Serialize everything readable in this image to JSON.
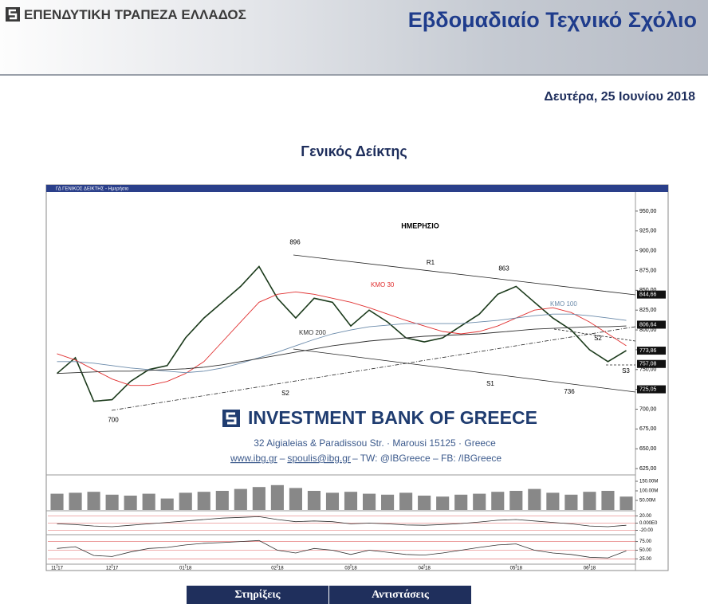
{
  "header": {
    "bank_name": "ΕΠΕΝΔΥΤΙΚΗ ΤΡΑΠΕΖΑ ΕΛΛΑΔΟΣ",
    "title": "Εβδομαδιαίο Τεχνικό Σχόλιο",
    "date": "Δευτέρα, 25 Ιουνίου 2018"
  },
  "section_title": "Γενικός Δείκτης",
  "watermark": {
    "name": "INVESTMENT BANK OF GREECE",
    "address": "32 Aigialeias & Paradissou Str. · Marousi 15125 · Greece",
    "website": "www.ibg.gr",
    "separator": "–",
    "email": "spoulis@ibg.gr",
    "social": "– TW: @IBGreece – FB: /IBGreece"
  },
  "table": {
    "headers": [
      "Στηρίξεις",
      "Αντιστάσεις"
    ]
  },
  "chart_data": {
    "type": "line",
    "window_title": "ΓΔ ΓΕΝΙΚΟΣ ΔΕΙΚΤΗΣ - Ημερήσιο",
    "title": "ΗΜΕΡΗΣΙΟ",
    "categories": [
      "11-17",
      null,
      null,
      "12-17",
      null,
      null,
      null,
      "01-18",
      null,
      null,
      null,
      null,
      "02-18",
      null,
      null,
      null,
      "03-18",
      null,
      null,
      null,
      "04-18",
      null,
      null,
      null,
      null,
      "05-18",
      null,
      null,
      null,
      "06-18",
      null,
      null
    ],
    "series": [
      {
        "color": "#1b3a1b",
        "values": [
          745,
          765,
          710,
          712,
          735,
          750,
          755,
          790,
          815,
          835,
          855,
          880,
          840,
          815,
          840,
          835,
          805,
          825,
          810,
          790,
          785,
          790,
          805,
          820,
          845,
          855,
          835,
          815,
          800,
          775,
          760,
          774
        ]
      },
      {
        "name": "ΚΜΟ 30",
        "color": "#e03030",
        "values": [
          770,
          762,
          750,
          738,
          730,
          730,
          735,
          745,
          760,
          785,
          810,
          835,
          845,
          848,
          845,
          840,
          835,
          828,
          820,
          812,
          805,
          798,
          795,
          798,
          805,
          815,
          825,
          828,
          822,
          810,
          795,
          780
        ]
      },
      {
        "name": "ΚΜΟ 100",
        "color": "#6a8aaa",
        "values": [
          760,
          760,
          758,
          755,
          752,
          750,
          748,
          746,
          748,
          752,
          758,
          765,
          772,
          780,
          788,
          795,
          800,
          804,
          806,
          808,
          808,
          808,
          808,
          810,
          812,
          815,
          818,
          820,
          820,
          818,
          815,
          812
        ]
      },
      {
        "name": "ΚΜΟ 200",
        "color": "#303030",
        "values": [
          745,
          746,
          747,
          748,
          748,
          749,
          750,
          751,
          753,
          756,
          760,
          764,
          768,
          772,
          776,
          780,
          783,
          786,
          788,
          790,
          792,
          793,
          794,
          795,
          797,
          799,
          801,
          802,
          803,
          804,
          804,
          805
        ]
      }
    ],
    "ylim": [
      615,
      965
    ],
    "yticks": [
      {
        "value": 625,
        "label": "625,00"
      },
      {
        "value": 650,
        "label": "650,00"
      },
      {
        "value": 675,
        "label": "675,00"
      },
      {
        "value": 700,
        "label": "700,00"
      },
      {
        "value": 725,
        "label": "725,00"
      },
      {
        "value": 750,
        "label": "750,00"
      },
      {
        "value": 775,
        "label": "775,00"
      },
      {
        "value": 800,
        "label": "800,00"
      },
      {
        "value": 825,
        "label": "825,00"
      },
      {
        "value": 850,
        "label": "850,00"
      },
      {
        "value": 875,
        "label": "875,00"
      },
      {
        "value": 900,
        "label": "900,00"
      },
      {
        "value": 925,
        "label": "925,00"
      },
      {
        "value": 950,
        "label": "950,00"
      }
    ],
    "levels": [
      {
        "value": 844.66,
        "label": "844,66"
      },
      {
        "value": 806.64,
        "label": "806,64"
      },
      {
        "value": 773.86,
        "label": "773,86"
      },
      {
        "value": 757.08,
        "label": "757,08"
      },
      {
        "value": 725.05,
        "label": "725,05"
      }
    ],
    "peaks": [
      896,
      863,
      700,
      736
    ],
    "trend_labels": [
      "R1",
      "S2",
      "S1",
      "S2",
      "S3"
    ],
    "volume": {
      "color": "#888888",
      "values": [
        85000000,
        90000000,
        95000000,
        80000000,
        75000000,
        85000000,
        60000000,
        90000000,
        95000000,
        100000000,
        110000000,
        120000000,
        130000000,
        115000000,
        100000000,
        90000000,
        95000000,
        85000000,
        80000000,
        90000000,
        75000000,
        70000000,
        80000000,
        85000000,
        95000000,
        100000000,
        110000000,
        90000000,
        80000000,
        95000000,
        100000000,
        70000000
      ],
      "ylim": [
        0,
        175000000
      ],
      "yticks": [
        {
          "value": 50000000,
          "label": "50.00M"
        },
        {
          "value": 100000000,
          "label": "100.00M"
        },
        {
          "value": 150000000,
          "label": "150.00M"
        }
      ]
    },
    "macd": {
      "color": "#303030",
      "values": [
        -2,
        -4,
        -8,
        -10,
        -6,
        -2,
        2,
        6,
        10,
        14,
        16,
        18,
        10,
        4,
        6,
        4,
        -2,
        0,
        -2,
        -5,
        -6,
        -4,
        -1,
        3,
        8,
        10,
        6,
        2,
        -2,
        -8,
        -10,
        -6
      ],
      "ylim": [
        -30,
        30
      ],
      "yticks": [
        {
          "value": -20,
          "label": "-20.00"
        },
        {
          "value": 0,
          "label": "0.000E0"
        },
        {
          "value": 20,
          "label": "20.00"
        }
      ]
    },
    "rsi": {
      "color": "#303030",
      "values": [
        55,
        60,
        35,
        32,
        45,
        55,
        58,
        65,
        70,
        72,
        75,
        78,
        50,
        42,
        55,
        50,
        38,
        50,
        44,
        38,
        36,
        42,
        50,
        58,
        65,
        68,
        50,
        42,
        38,
        30,
        28,
        48
      ],
      "ylim": [
        10,
        90
      ],
      "yticks": [
        {
          "value": 25,
          "label": "25.00"
        },
        {
          "value": 50,
          "label": "50.00"
        },
        {
          "value": 75,
          "label": "75.00"
        }
      ]
    }
  }
}
